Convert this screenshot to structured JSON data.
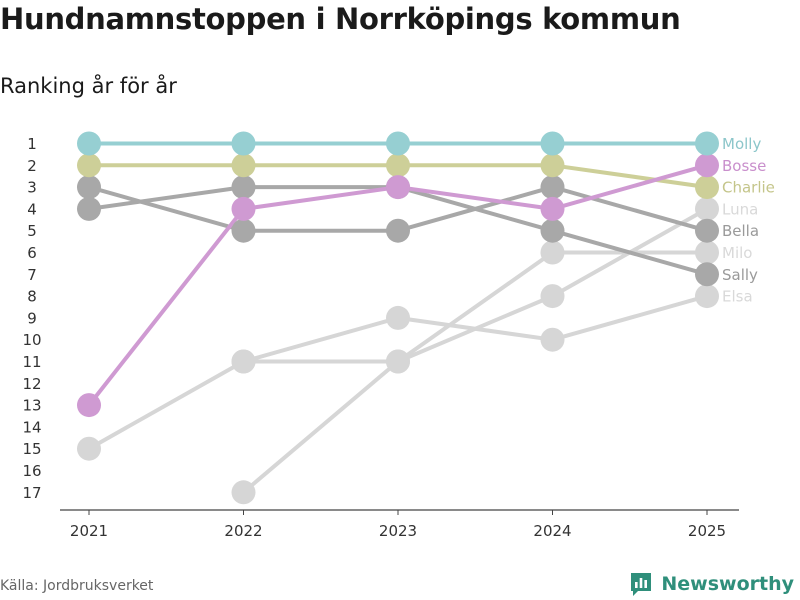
{
  "title": "Hundnamnstoppen i Norrköpings kommun",
  "subtitle": "Ranking år för år",
  "source": "Källa: Jordbruksverket",
  "brand": {
    "name": "Newsworthy",
    "icon": "newsworthy-logo-icon",
    "color": "#2f8f7b"
  },
  "chart_data": {
    "type": "line",
    "x": [
      "2021",
      "2022",
      "2023",
      "2024",
      "2025"
    ],
    "y_ticks": [
      1,
      2,
      3,
      4,
      5,
      6,
      7,
      8,
      9,
      10,
      11,
      12,
      13,
      14,
      15,
      16,
      17
    ],
    "ylim": [
      1,
      17
    ],
    "y_reversed": true,
    "grid": false,
    "legend": "direct labels at right end of lines",
    "series": [
      {
        "name": "Elsa",
        "values": [
          null,
          11,
          9,
          10,
          8
        ],
        "color": "#d6d6d6",
        "label_color": "#d9d9d9"
      },
      {
        "name": "Milo",
        "values": [
          null,
          17,
          11,
          6,
          6
        ],
        "color": "#d6d6d6",
        "label_color": "#d9d9d9"
      },
      {
        "name": "Luna",
        "values": [
          15,
          11,
          11,
          8,
          4
        ],
        "color": "#d6d6d6",
        "label_color": "#d9d9d9"
      },
      {
        "name": "Sally",
        "values": [
          4,
          3,
          3,
          5,
          7
        ],
        "color": "#a8a8a8",
        "label_color": "#9a9a9a"
      },
      {
        "name": "Bella",
        "values": [
          3,
          5,
          5,
          3,
          5
        ],
        "color": "#a8a8a8",
        "label_color": "#9a9a9a"
      },
      {
        "name": "Charlie",
        "values": [
          2,
          2,
          2,
          2,
          3
        ],
        "color": "#cdcf98",
        "label_color": "#c4c58a"
      },
      {
        "name": "Bosse",
        "values": [
          13,
          4,
          3,
          4,
          2
        ],
        "color": "#cf9ad2",
        "label_color": "#c98fcc"
      },
      {
        "name": "Molly",
        "values": [
          1,
          1,
          1,
          1,
          1
        ],
        "color": "#96cfd2",
        "label_color": "#8cc6ca"
      }
    ]
  }
}
